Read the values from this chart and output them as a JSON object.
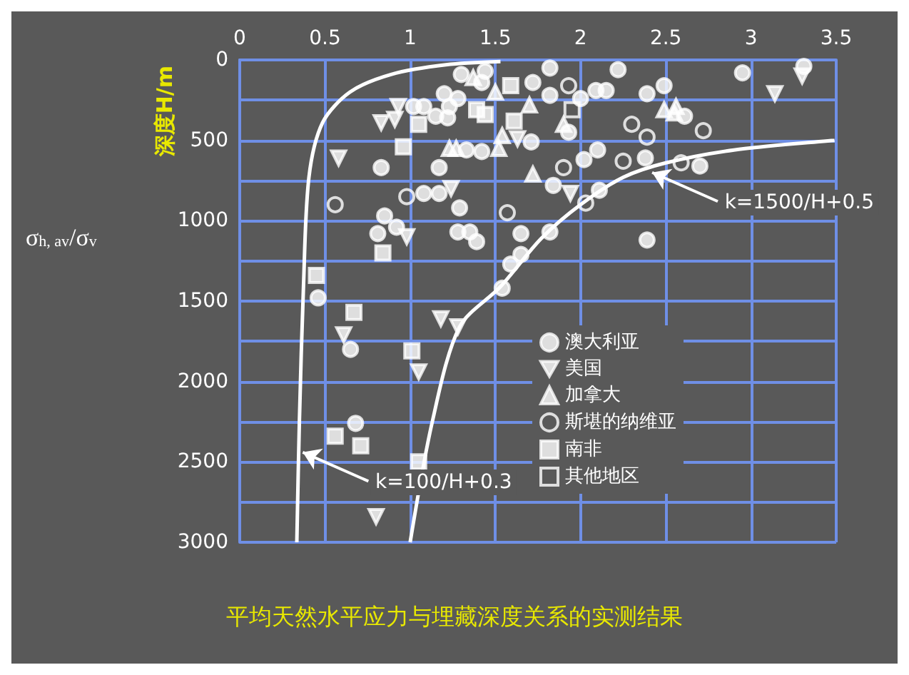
{
  "chart_data": {
    "type": "scatter",
    "title": "平均天然水平应力与埋藏深度关系的实测结果",
    "xlabel": "σ$_{h, av}$/σ$_{v}$",
    "ylabel": "深度H/m",
    "xlim": [
      0,
      3.5
    ],
    "xticks": [
      0,
      0.5,
      1.0,
      1.5,
      2.0,
      2.5,
      3.0,
      3.5
    ],
    "ylim": [
      3000,
      0
    ],
    "yticks": [
      0,
      {
        "value": 250,
        "label": null
      },
      500,
      {
        "value": 750,
        "label": null
      },
      1000,
      {
        "value": 1250,
        "label": null
      },
      1500,
      {
        "value": 1750,
        "label": null
      },
      2000,
      {
        "value": 2250,
        "label": null
      },
      2500,
      {
        "value": 2750,
        "label": null
      },
      3000
    ],
    "grid": true,
    "legend": "right",
    "annotations": [
      {
        "text": "k=1500/H+0.5",
        "x": 2.42,
        "y": 700
      },
      {
        "text": "k=100/H+0.3",
        "x": 0.37,
        "y": 2440
      }
    ],
    "series": [
      {
        "name": "澳大利亚",
        "color": "#ffffff",
        "marker": "circle",
        "x": [
          1.3,
          1.44,
          1.42,
          1.2,
          1.28,
          1.02,
          1.08,
          1.23,
          1.15,
          1.22,
          1.72,
          1.82,
          1.82,
          1.71,
          1.33,
          1.42,
          0.83,
          1.17,
          1.84,
          1.08,
          1.17,
          1.29,
          0.85,
          0.81,
          0.92,
          1.28,
          1.35,
          1.39,
          1.65,
          1.82,
          1.65,
          1.59,
          1.54,
          0.46,
          2.22,
          2.09,
          2.15,
          2.39,
          2.49,
          2.0,
          2.95,
          3.31,
          2.61,
          1.93,
          2.1,
          2.02,
          2.38,
          2.7,
          2.11,
          2.39,
          0.65,
          0.68
        ],
        "values": [
          90,
          70,
          140,
          210,
          240,
          290,
          290,
          290,
          350,
          360,
          140,
          50,
          220,
          510,
          560,
          570,
          670,
          670,
          780,
          830,
          830,
          920,
          970,
          1080,
          1040,
          1070,
          1070,
          1130,
          1080,
          1070,
          1210,
          1270,
          1420,
          1480,
          60,
          190,
          190,
          210,
          160,
          240,
          80,
          40,
          350,
          450,
          560,
          620,
          610,
          660,
          810,
          1120,
          1800,
          2260
        ]
      },
      {
        "name": "美国",
        "color": "#ffffff",
        "marker": "triangle-down",
        "x": [
          0.93,
          0.83,
          0.91,
          1.63,
          0.58,
          1.24,
          0.98,
          3.3,
          3.14,
          1.94,
          1.18,
          1.28,
          0.61,
          1.05,
          0.8
        ],
        "values": [
          290,
          390,
          370,
          490,
          610,
          800,
          1100,
          100,
          210,
          830,
          1610,
          1660,
          1710,
          1940,
          2840
        ]
      },
      {
        "name": "加拿大",
        "color": "#ffffff",
        "marker": "triangle",
        "x": [
          1.37,
          1.5,
          1.7,
          1.54,
          1.23,
          1.27,
          1.52,
          1.72,
          1.9,
          2.49,
          2.56,
          2.55
        ],
        "values": [
          110,
          200,
          280,
          470,
          550,
          550,
          550,
          710,
          400,
          310,
          290,
          330
        ]
      },
      {
        "name": "斯堪的纳维亚",
        "color": "#ffffff",
        "marker": "circle-open",
        "x": [
          0.56,
          0.98,
          1.57,
          1.93,
          2.3,
          2.39,
          2.72,
          1.9,
          2.25,
          2.59,
          2.03
        ],
        "values": [
          900,
          850,
          950,
          160,
          400,
          480,
          440,
          670,
          630,
          640,
          890
        ]
      },
      {
        "name": "南非",
        "color": "#ffffff",
        "marker": "square",
        "x": [
          1.59,
          1.05,
          1.39,
          1.44,
          1.61,
          0.96,
          0.84,
          0.45,
          0.67,
          1.01,
          0.56,
          0.71,
          1.05
        ],
        "values": [
          160,
          400,
          310,
          340,
          380,
          540,
          1200,
          1340,
          1570,
          1810,
          2340,
          2400,
          2500
        ]
      },
      {
        "name": "其他地区",
        "color": "#ffffff",
        "marker": "square-open",
        "x": [
          1.95
        ],
        "values": [
          310
        ]
      },
      {
        "type": "line",
        "color": "#ffffff",
        "marker": "none",
        "x": [
          0.335,
          0.35,
          0.374,
          0.406,
          0.486,
          0.647,
          0.888,
          1.21,
          1.53
        ],
        "values": [
          3000,
          2250,
          1410,
          730,
          390,
          200,
          90,
          30,
          10
        ]
      },
      {
        "type": "line",
        "color": "#ffffff",
        "marker": "none",
        "x": [
          1.0,
          1.13,
          1.29,
          1.53,
          1.77,
          2.0,
          2.25,
          2.5,
          2.9,
          3.49
        ],
        "values": [
          3000,
          2250,
          1660,
          1410,
          1110,
          900,
          730,
          640,
          560,
          500
        ]
      }
    ]
  }
}
